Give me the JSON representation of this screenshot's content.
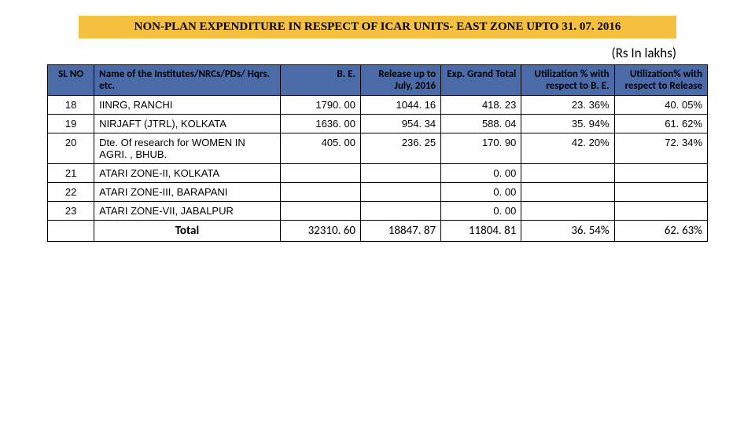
{
  "title": "NON-PLAN EXPENDITURE IN RESPECT OF ICAR UNITS- EAST ZONE UPTO 31. 07. 2016",
  "subtitle": "(Rs In lakhs)",
  "columns": {
    "slno": "SL NO",
    "name": "Name of the Institutes/NRCs/PDs/ Hqrs. etc.",
    "be": "B. E.",
    "release": "Release up to July, 2016",
    "exp": "Exp. Grand Total",
    "util_be": "Utilization % with respect to B. E.",
    "util_rel": "Utilization% with respect to Release"
  },
  "rows": [
    {
      "slno": "18",
      "name": "IINRG,  RANCHI",
      "be": "1790. 00",
      "release": "1044. 16",
      "exp": "418. 23",
      "util_be": "23. 36%",
      "util_rel": "40. 05%"
    },
    {
      "slno": "19",
      "name": "NIRJAFT (JTRL), KOLKATA",
      "be": "1636. 00",
      "release": "954. 34",
      "exp": "588. 04",
      "util_be": "35. 94%",
      "util_rel": "61. 62%"
    },
    {
      "slno": "20",
      "name": "Dte. Of research for WOMEN IN AGRI. , BHUB.",
      "be": "405. 00",
      "release": "236. 25",
      "exp": "170. 90",
      "util_be": "42. 20%",
      "util_rel": "72. 34%"
    },
    {
      "slno": "21",
      "name": "ATARI ZONE-II, KOLKATA",
      "be": "",
      "release": "",
      "exp": "0. 00",
      "util_be": "",
      "util_rel": ""
    },
    {
      "slno": "22",
      "name": "ATARI ZONE-III, BARAPANI",
      "be": "",
      "release": "",
      "exp": "0. 00",
      "util_be": "",
      "util_rel": ""
    },
    {
      "slno": "23",
      "name": "ATARI ZONE-VII, JABALPUR",
      "be": "",
      "release": "",
      "exp": "0. 00",
      "util_be": "",
      "util_rel": ""
    }
  ],
  "total": {
    "label": "Total",
    "be": "32310. 60",
    "release": "18847. 87",
    "exp": "11804. 81",
    "util_be": "36. 54%",
    "util_rel": "62. 63%"
  },
  "colors": {
    "banner_bg": "#f5c040",
    "header_bg": "#4b6aa8"
  }
}
